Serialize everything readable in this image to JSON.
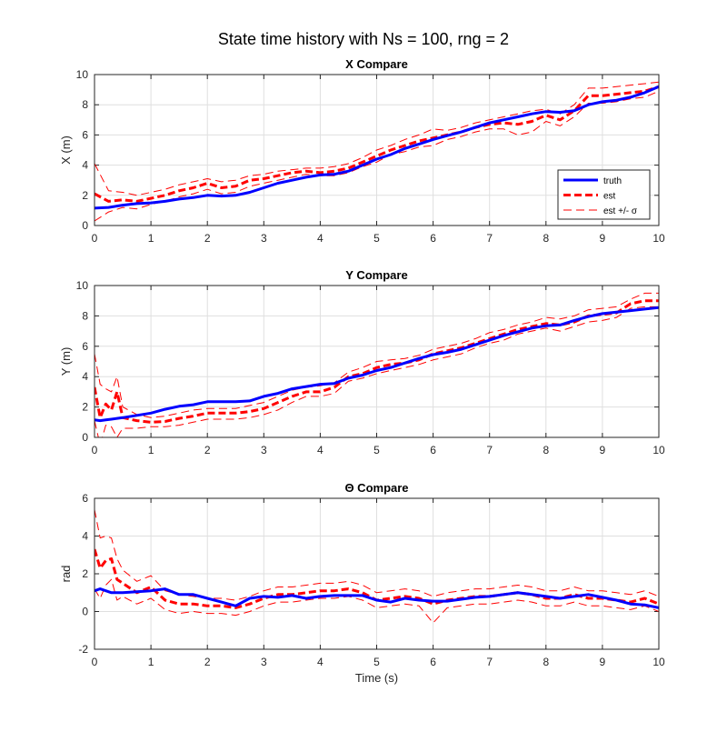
{
  "figure": {
    "title": "State time history with Ns = 100, rng = 2"
  },
  "chart_data": [
    {
      "type": "line",
      "title": "X Compare",
      "xlabel": "",
      "ylabel": "X (m)",
      "xlim": [
        0,
        10
      ],
      "ylim": [
        0,
        10
      ],
      "xticks": [
        "0",
        "1",
        "2",
        "3",
        "4",
        "5",
        "6",
        "7",
        "8",
        "9",
        "10"
      ],
      "yticks": [
        "0",
        "2",
        "4",
        "6",
        "8",
        "10"
      ],
      "grid": true,
      "legend": {
        "position": "lower-right",
        "entries": [
          "truth",
          "est",
          "est +/- σ"
        ]
      },
      "x": [
        0,
        0.25,
        0.5,
        0.75,
        1,
        1.25,
        1.5,
        1.75,
        2,
        2.25,
        2.5,
        2.75,
        3,
        3.25,
        3.5,
        3.75,
        4,
        4.25,
        4.5,
        4.75,
        5,
        5.25,
        5.5,
        5.75,
        6,
        6.25,
        6.5,
        6.75,
        7,
        7.25,
        7.5,
        7.75,
        8,
        8.25,
        8.5,
        8.75,
        9,
        9.25,
        9.5,
        9.75,
        10
      ],
      "series": [
        {
          "name": "truth",
          "color": "#0000ff",
          "style": "solid",
          "width": 3,
          "values": [
            1.15,
            1.2,
            1.35,
            1.45,
            1.5,
            1.6,
            1.75,
            1.85,
            2.0,
            1.95,
            2.0,
            2.2,
            2.5,
            2.8,
            3.0,
            3.2,
            3.35,
            3.4,
            3.6,
            4.0,
            4.4,
            4.7,
            5.1,
            5.4,
            5.7,
            5.95,
            6.2,
            6.5,
            6.8,
            7.0,
            7.2,
            7.4,
            7.55,
            7.5,
            7.6,
            8.0,
            8.2,
            8.3,
            8.5,
            8.8,
            9.2
          ]
        },
        {
          "name": "est",
          "color": "#ff0000",
          "style": "dashed",
          "width": 3,
          "values": [
            2.1,
            1.6,
            1.7,
            1.6,
            1.8,
            2.0,
            2.3,
            2.5,
            2.8,
            2.5,
            2.6,
            3.0,
            3.1,
            3.3,
            3.5,
            3.6,
            3.5,
            3.6,
            3.8,
            4.2,
            4.6,
            5.0,
            5.3,
            5.6,
            5.8,
            6.0,
            6.2,
            6.5,
            6.7,
            6.8,
            6.7,
            6.9,
            7.3,
            7.0,
            7.6,
            8.6,
            8.6,
            8.7,
            8.8,
            8.9,
            9.2
          ]
        },
        {
          "name": "est + σ",
          "color": "#ff0000",
          "style": "dashed",
          "width": 1,
          "values": [
            4.1,
            2.3,
            2.2,
            2.0,
            2.2,
            2.4,
            2.7,
            2.9,
            3.1,
            2.9,
            3.0,
            3.3,
            3.4,
            3.6,
            3.7,
            3.8,
            3.8,
            3.9,
            4.1,
            4.5,
            5.0,
            5.3,
            5.7,
            6.0,
            6.4,
            6.3,
            6.5,
            6.8,
            7.0,
            7.2,
            7.4,
            7.6,
            7.7,
            7.4,
            8.0,
            9.1,
            9.1,
            9.2,
            9.3,
            9.4,
            9.5
          ]
        },
        {
          "name": "est - σ",
          "color": "#ff0000",
          "style": "dashed",
          "width": 1,
          "values": [
            0.3,
            0.9,
            1.2,
            1.1,
            1.4,
            1.6,
            1.9,
            2.1,
            2.4,
            2.1,
            2.2,
            2.6,
            2.8,
            3.0,
            3.2,
            3.4,
            3.3,
            3.3,
            3.5,
            3.9,
            4.2,
            4.7,
            4.9,
            5.2,
            5.3,
            5.7,
            5.9,
            6.2,
            6.4,
            6.4,
            6.0,
            6.2,
            6.9,
            6.6,
            7.2,
            8.1,
            8.1,
            8.2,
            8.4,
            8.5,
            8.9
          ]
        }
      ]
    },
    {
      "type": "line",
      "title": "Y Compare",
      "xlabel": "",
      "ylabel": "Y (m)",
      "xlim": [
        0,
        10
      ],
      "ylim": [
        0,
        10
      ],
      "xticks": [
        "0",
        "1",
        "2",
        "3",
        "4",
        "5",
        "6",
        "7",
        "8",
        "9",
        "10"
      ],
      "yticks": [
        "0",
        "2",
        "4",
        "6",
        "8",
        "10"
      ],
      "grid": true,
      "x": [
        0,
        0.1,
        0.2,
        0.3,
        0.4,
        0.5,
        0.75,
        1,
        1.25,
        1.5,
        1.75,
        2,
        2.25,
        2.5,
        2.75,
        3,
        3.25,
        3.5,
        3.75,
        4,
        4.25,
        4.5,
        4.75,
        5,
        5.25,
        5.5,
        5.75,
        6,
        6.25,
        6.5,
        6.75,
        7,
        7.25,
        7.5,
        7.75,
        8,
        8.25,
        8.5,
        8.75,
        9,
        9.25,
        9.5,
        9.75,
        10
      ],
      "series": [
        {
          "name": "truth",
          "color": "#0000ff",
          "style": "solid",
          "width": 3,
          "values": [
            1.15,
            1.1,
            1.15,
            1.2,
            1.25,
            1.3,
            1.45,
            1.6,
            1.85,
            2.05,
            2.15,
            2.35,
            2.35,
            2.35,
            2.4,
            2.7,
            2.9,
            3.2,
            3.35,
            3.5,
            3.55,
            3.9,
            4.1,
            4.4,
            4.6,
            4.9,
            5.2,
            5.45,
            5.6,
            5.8,
            6.1,
            6.4,
            6.7,
            6.95,
            7.2,
            7.35,
            7.4,
            7.7,
            7.95,
            8.15,
            8.25,
            8.35,
            8.45,
            8.55
          ]
        },
        {
          "name": "est",
          "color": "#ff0000",
          "style": "dashed",
          "width": 3,
          "values": [
            3.3,
            1.3,
            2.2,
            1.8,
            3.0,
            1.3,
            1.1,
            1.0,
            1.05,
            1.25,
            1.4,
            1.6,
            1.6,
            1.6,
            1.7,
            1.9,
            2.3,
            2.7,
            3.0,
            3.0,
            3.3,
            4.0,
            4.2,
            4.6,
            4.8,
            4.9,
            5.1,
            5.5,
            5.7,
            5.9,
            6.2,
            6.5,
            6.8,
            7.1,
            7.3,
            7.5,
            7.4,
            7.6,
            8.0,
            8.1,
            8.2,
            8.8,
            9.0,
            9.0
          ]
        },
        {
          "name": "est + σ",
          "color": "#ff0000",
          "style": "dashed",
          "width": 1,
          "values": [
            5.5,
            3.5,
            3.2,
            3.0,
            4.0,
            2.0,
            1.5,
            1.3,
            1.4,
            1.6,
            1.8,
            1.9,
            1.9,
            1.9,
            2.1,
            2.3,
            2.7,
            3.1,
            3.3,
            3.4,
            3.6,
            4.3,
            4.6,
            5.0,
            5.1,
            5.2,
            5.4,
            5.8,
            6.0,
            6.2,
            6.5,
            6.9,
            7.1,
            7.4,
            7.6,
            7.9,
            7.8,
            8.0,
            8.4,
            8.5,
            8.6,
            9.1,
            9.5,
            9.5
          ]
        },
        {
          "name": "est - σ",
          "color": "#ff0000",
          "style": "dashed",
          "width": 1,
          "values": [
            1.1,
            -0.5,
            0.8,
            0.7,
            0.0,
            0.6,
            0.6,
            0.7,
            0.7,
            0.8,
            1.0,
            1.2,
            1.2,
            1.2,
            1.3,
            1.5,
            1.8,
            2.3,
            2.7,
            2.7,
            2.9,
            3.7,
            3.9,
            4.2,
            4.4,
            4.6,
            4.8,
            5.1,
            5.3,
            5.5,
            5.9,
            6.2,
            6.4,
            6.8,
            7.0,
            7.2,
            7.0,
            7.3,
            7.6,
            7.7,
            7.9,
            8.5,
            8.6,
            8.6
          ]
        }
      ]
    },
    {
      "type": "line",
      "title": "Θ Compare",
      "xlabel": "Time (s)",
      "ylabel": "rad",
      "xlim": [
        0,
        10
      ],
      "ylim": [
        -2,
        6
      ],
      "xticks": [
        "0",
        "1",
        "2",
        "3",
        "4",
        "5",
        "6",
        "7",
        "8",
        "9",
        "10"
      ],
      "yticks": [
        "-2",
        "0",
        "2",
        "4",
        "6"
      ],
      "grid": true,
      "x": [
        0,
        0.1,
        0.2,
        0.3,
        0.4,
        0.5,
        0.75,
        1,
        1.25,
        1.5,
        1.75,
        2,
        2.25,
        2.5,
        2.75,
        3,
        3.25,
        3.5,
        3.75,
        4,
        4.25,
        4.5,
        4.75,
        5,
        5.25,
        5.5,
        5.75,
        6,
        6.25,
        6.5,
        6.75,
        7,
        7.25,
        7.5,
        7.75,
        8,
        8.25,
        8.5,
        8.75,
        9,
        9.25,
        9.5,
        9.75,
        10
      ],
      "series": [
        {
          "name": "truth",
          "color": "#0000ff",
          "style": "solid",
          "width": 3,
          "values": [
            1.1,
            1.2,
            1.1,
            1.0,
            1.0,
            1.0,
            1.05,
            1.1,
            1.2,
            0.9,
            0.9,
            0.7,
            0.5,
            0.3,
            0.7,
            0.8,
            0.75,
            0.85,
            0.7,
            0.8,
            0.85,
            0.85,
            0.85,
            0.6,
            0.5,
            0.7,
            0.6,
            0.55,
            0.55,
            0.65,
            0.75,
            0.8,
            0.9,
            1.0,
            0.9,
            0.8,
            0.7,
            0.8,
            0.9,
            0.75,
            0.6,
            0.4,
            0.35,
            0.2
          ]
        },
        {
          "name": "est",
          "color": "#ff0000",
          "style": "dashed",
          "width": 3,
          "values": [
            3.3,
            2.3,
            2.7,
            2.8,
            1.7,
            1.5,
            1.0,
            1.3,
            0.6,
            0.4,
            0.4,
            0.3,
            0.3,
            0.2,
            0.4,
            0.7,
            0.9,
            0.9,
            1.0,
            1.1,
            1.1,
            1.2,
            1.0,
            0.6,
            0.7,
            0.8,
            0.7,
            0.4,
            0.6,
            0.7,
            0.8,
            0.8,
            0.9,
            1.0,
            0.9,
            0.7,
            0.7,
            0.9,
            0.7,
            0.7,
            0.6,
            0.5,
            0.7,
            0.4
          ]
        },
        {
          "name": "est + σ",
          "color": "#ff0000",
          "style": "dashed",
          "width": 1,
          "values": [
            5.4,
            3.9,
            4.0,
            3.9,
            2.8,
            2.2,
            1.6,
            1.9,
            1.1,
            0.9,
            0.8,
            0.7,
            0.7,
            0.6,
            0.8,
            1.1,
            1.3,
            1.3,
            1.4,
            1.5,
            1.5,
            1.6,
            1.4,
            1.0,
            1.1,
            1.2,
            1.1,
            0.8,
            1.0,
            1.1,
            1.2,
            1.2,
            1.3,
            1.4,
            1.3,
            1.1,
            1.1,
            1.3,
            1.1,
            1.1,
            1.0,
            0.9,
            1.1,
            0.8
          ]
        },
        {
          "name": "est - σ",
          "color": "#ff0000",
          "style": "dashed",
          "width": 1,
          "values": [
            1.2,
            0.7,
            1.4,
            1.7,
            0.6,
            0.8,
            0.4,
            0.7,
            0.1,
            -0.1,
            0.0,
            -0.1,
            -0.1,
            -0.2,
            0.0,
            0.3,
            0.5,
            0.5,
            0.6,
            0.7,
            0.7,
            0.8,
            0.6,
            0.2,
            0.3,
            0.4,
            0.3,
            -0.6,
            0.2,
            0.3,
            0.4,
            0.4,
            0.5,
            0.6,
            0.5,
            0.3,
            0.3,
            0.5,
            0.3,
            0.3,
            0.2,
            0.1,
            0.3,
            0.0
          ]
        }
      ]
    }
  ]
}
